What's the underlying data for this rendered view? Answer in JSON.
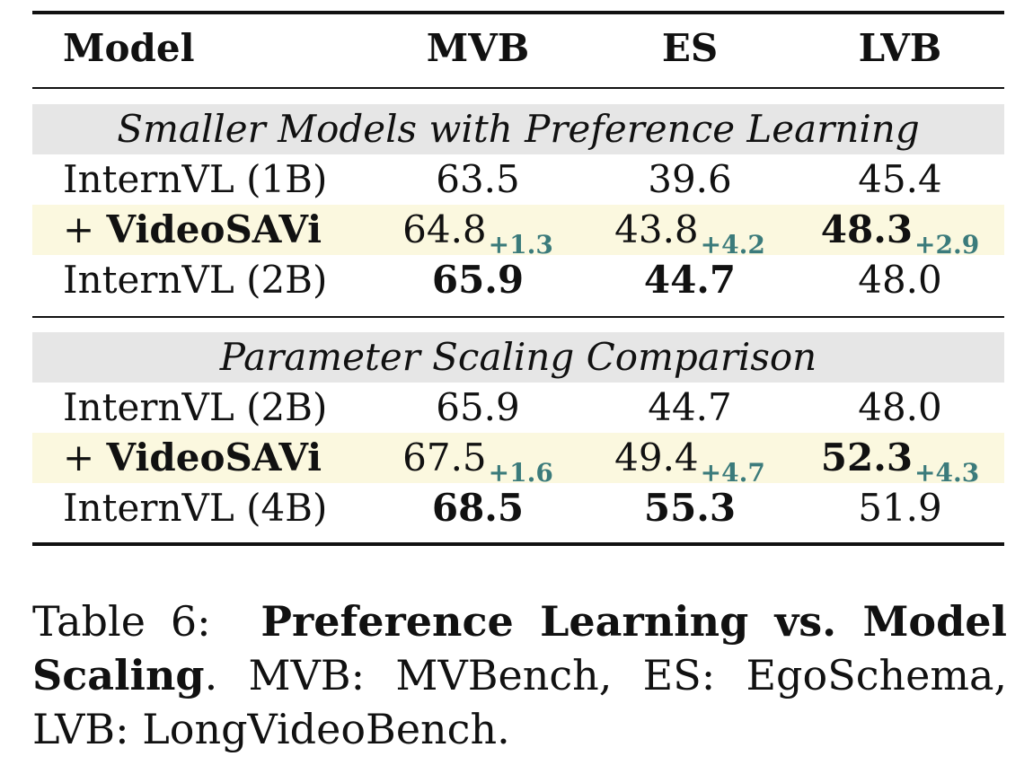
{
  "table": {
    "headers": [
      "Model",
      "MVB",
      "ES",
      "LVB"
    ],
    "sections": [
      {
        "title": "Smaller Models with Preference Learning",
        "rows": [
          {
            "model_prefix": "",
            "model": "InternVL (1B)",
            "highlight": false,
            "cells": [
              {
                "value": "63.5",
                "delta": "",
                "bold": false
              },
              {
                "value": "39.6",
                "delta": "",
                "bold": false
              },
              {
                "value": "45.4",
                "delta": "",
                "bold": false
              }
            ]
          },
          {
            "model_prefix": "+ ",
            "model": "VideoSAVi",
            "highlight": true,
            "cells": [
              {
                "value": "64.8",
                "delta": "+1.3",
                "bold": false
              },
              {
                "value": "43.8",
                "delta": "+4.2",
                "bold": false
              },
              {
                "value": "48.3",
                "delta": "+2.9",
                "bold": true
              }
            ]
          },
          {
            "model_prefix": "",
            "model": "InternVL (2B)",
            "highlight": false,
            "cells": [
              {
                "value": "65.9",
                "delta": "",
                "bold": true
              },
              {
                "value": "44.7",
                "delta": "",
                "bold": true
              },
              {
                "value": "48.0",
                "delta": "",
                "bold": false
              }
            ]
          }
        ]
      },
      {
        "title": "Parameter Scaling Comparison",
        "rows": [
          {
            "model_prefix": "",
            "model": "InternVL (2B)",
            "highlight": false,
            "cells": [
              {
                "value": "65.9",
                "delta": "",
                "bold": false
              },
              {
                "value": "44.7",
                "delta": "",
                "bold": false
              },
              {
                "value": "48.0",
                "delta": "",
                "bold": false
              }
            ]
          },
          {
            "model_prefix": "+ ",
            "model": "VideoSAVi",
            "highlight": true,
            "cells": [
              {
                "value": "67.5",
                "delta": "+1.6",
                "bold": false
              },
              {
                "value": "49.4",
                "delta": "+4.7",
                "bold": false
              },
              {
                "value": "52.3",
                "delta": "+4.3",
                "bold": true
              }
            ]
          },
          {
            "model_prefix": "",
            "model": "InternVL (4B)",
            "highlight": false,
            "cells": [
              {
                "value": "68.5",
                "delta": "",
                "bold": true
              },
              {
                "value": "55.3",
                "delta": "",
                "bold": true
              },
              {
                "value": "51.9",
                "delta": "",
                "bold": false
              }
            ]
          }
        ]
      }
    ]
  },
  "caption": {
    "label": "Table 6:",
    "title": "Preference Learning vs. Model Scaling",
    "text": ". MVB: MVBench, ES: EgoSchema, LVB: LongVideoBench."
  },
  "colors": {
    "highlight_row": "#fbf8df",
    "section_band": "#e6e6e6",
    "delta": "#3b7b7b"
  }
}
